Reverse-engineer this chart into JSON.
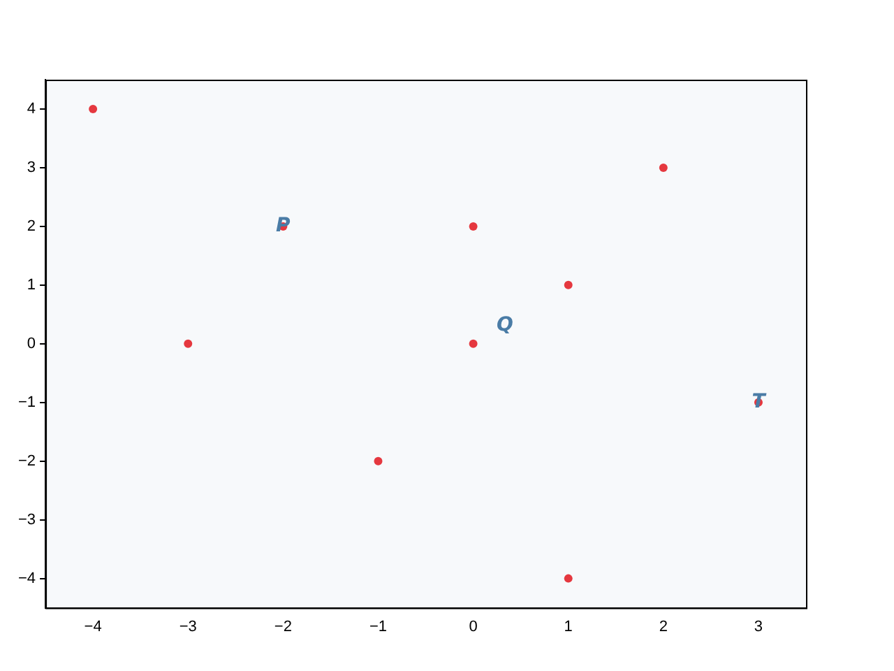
{
  "chart_data": {
    "type": "scatter",
    "x": [
      -4,
      -3,
      -2,
      -1,
      0,
      0,
      1,
      1,
      2,
      3
    ],
    "values": [
      4,
      0,
      2,
      -2,
      2,
      0,
      1,
      -4,
      3,
      -1
    ],
    "color": "#e5383f",
    "xlim": [
      -4.5,
      3.5
    ],
    "xticks": [
      -4,
      -3,
      -2,
      -1,
      0,
      1,
      2,
      3
    ],
    "ylim": [
      -4.5,
      4.5
    ],
    "yticks": [
      -4,
      -3,
      -2,
      -1,
      0,
      1,
      2,
      3,
      4
    ],
    "marker": "circle",
    "grid": false,
    "legend": false,
    "annotations": [
      {
        "text": "P",
        "x": -2,
        "y": 2
      },
      "Q",
      {
        "text": "T",
        "x": 3,
        "y": -1
      }
    ]
  }
}
